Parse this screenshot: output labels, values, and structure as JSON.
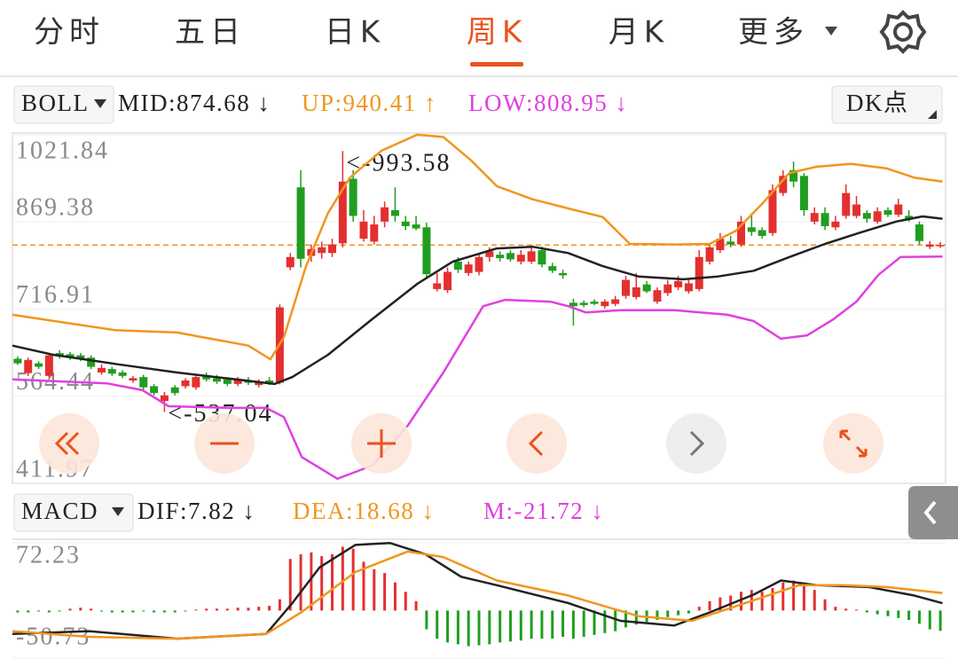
{
  "tabs": {
    "items": [
      "分时",
      "五日",
      "日K",
      "周K",
      "月K",
      "更多"
    ],
    "active": 3
  },
  "boll_bar": {
    "name": "BOLL",
    "items": [
      {
        "text": "MID:874.68 ↓",
        "color": "#222222"
      },
      {
        "text": "UP:940.41 ↑",
        "color": "#f0961e"
      },
      {
        "text": "LOW:808.95 ↓",
        "color": "#e040e0"
      }
    ],
    "option": "DK点"
  },
  "macd_bar": {
    "name": "MACD",
    "items": [
      {
        "text": "DIF:7.82 ↓",
        "color": "#222222"
      },
      {
        "text": "DEA:18.68 ↓",
        "color": "#f0961e"
      },
      {
        "text": "M:-21.72 ↓",
        "color": "#e040e0"
      }
    ]
  },
  "chart_data": [
    {
      "type": "candlestick",
      "up_color": "#e3302f",
      "down_color": "#1f9e1f",
      "xlim": [
        -0.5,
        88.5
      ],
      "ylim": [
        411.97,
        1021.84
      ],
      "yticks": [
        411.97,
        564.44,
        716.91,
        869.38,
        1021.84
      ],
      "price_line": 829,
      "price_line_color": "#f0961e",
      "annotations": [
        "<-993.58",
        "<-537.04"
      ],
      "open": [
        630,
        605,
        622,
        600,
        640,
        638,
        636,
        632,
        606,
        612,
        606,
        592,
        598,
        582,
        556,
        580,
        582,
        580,
        600,
        596,
        594,
        586,
        592,
        584,
        592,
        588,
        790,
        930,
        810,
        815,
        815,
        832,
        945,
        840,
        835,
        870,
        890,
        870,
        865,
        860,
        752,
        750,
        800,
        780,
        782,
        808,
        812,
        815,
        800,
        800,
        820,
        792,
        780,
        728,
        728,
        730,
        722,
        726,
        740,
        738,
        760,
        730,
        745,
        755,
        748,
        752,
        800,
        820,
        835,
        830,
        860,
        855,
        850,
        920,
        960,
        950,
        870,
        885,
        860,
        880,
        880,
        885,
        870,
        890,
        882,
        880,
        865,
        826,
        828
      ],
      "high": [
        634,
        632,
        626,
        640,
        645,
        642,
        640,
        636,
        620,
        616,
        610,
        600,
        602,
        586,
        572,
        584,
        596,
        602,
        606,
        602,
        598,
        598,
        598,
        594,
        598,
        725,
        815,
        960,
        830,
        835,
        840,
        993.58,
        960,
        890,
        880,
        905,
        930,
        880,
        880,
        868,
        780,
        790,
        808,
        800,
        815,
        825,
        818,
        820,
        820,
        825,
        826,
        798,
        786,
        735,
        732,
        734,
        734,
        740,
        775,
        780,
        766,
        755,
        768,
        775,
        770,
        820,
        830,
        850,
        845,
        880,
        885,
        860,
        935,
        960,
        975,
        955,
        895,
        895,
        880,
        935,
        915,
        890,
        895,
        895,
        910,
        890,
        870,
        836,
        834
      ],
      "low": [
        619,
        600,
        612,
        596,
        630,
        628,
        626,
        612,
        602,
        600,
        596,
        588,
        576,
        566,
        537.04,
        566,
        578,
        576,
        590,
        586,
        582,
        582,
        584,
        580,
        584,
        585,
        785,
        790,
        800,
        805,
        808,
        825,
        870,
        835,
        830,
        860,
        870,
        855,
        855,
        770,
        748,
        745,
        780,
        775,
        776,
        800,
        800,
        800,
        795,
        796,
        790,
        780,
        770,
        688,
        720,
        724,
        718,
        722,
        735,
        734,
        745,
        726,
        740,
        750,
        744,
        748,
        795,
        815,
        825,
        826,
        845,
        840,
        845,
        915,
        930,
        880,
        865,
        855,
        855,
        875,
        876,
        868,
        866,
        878,
        878,
        870,
        830,
        822,
        824
      ],
      "close": [
        622,
        628,
        616,
        636,
        634,
        632,
        630,
        616,
        614,
        604,
        600,
        596,
        580,
        570,
        566,
        570,
        592,
        598,
        594,
        590,
        586,
        594,
        588,
        590,
        588,
        720,
        808,
        805,
        822,
        825,
        830,
        940,
        880,
        870,
        865,
        895,
        880,
        862,
        858,
        778,
        762,
        782,
        786,
        795,
        808,
        818,
        806,
        804,
        812,
        818,
        795,
        784,
        776,
        722,
        724,
        726,
        730,
        734,
        768,
        755,
        748,
        750,
        760,
        766,
        762,
        808,
        825,
        840,
        830,
        870,
        852,
        845,
        925,
        950,
        940,
        890,
        885,
        862,
        870,
        920,
        900,
        875,
        888,
        882,
        900,
        874,
        836,
        830,
        829
      ],
      "lines": [
        {
          "color": "#f0961e",
          "x": [
            -0.5,
            9.3,
            15.2,
            22,
            24.1,
            25.4,
            27.5,
            29.6,
            31.7,
            34.7,
            38.1,
            40.6,
            43.2,
            45.7,
            49.1,
            52.5,
            55.8,
            58.4,
            62.6,
            66,
            68.5,
            71,
            73.6,
            76.2,
            79.5,
            82.9,
            85.5,
            88.2
          ],
          "values": [
            707,
            680,
            676,
            653,
            629,
            668,
            792,
            885,
            947,
            994,
            1022,
            1018,
            978,
            932,
            909,
            893,
            878,
            831,
            830,
            831,
            854,
            901,
            955,
            966,
            971,
            963,
            947,
            940
          ]
        },
        {
          "color": "#222222",
          "x": [
            -0.5,
            3.4,
            9.3,
            15.2,
            21.2,
            24.5,
            26.2,
            29.6,
            33.8,
            38.1,
            41.5,
            45.7,
            49.1,
            52.5,
            55.8,
            59.2,
            63.5,
            66.8,
            70.2,
            73.6,
            77,
            80.4,
            83.8,
            86.3,
            88.2
          ],
          "values": [
            653,
            637,
            621,
            606,
            593,
            586,
            598,
            637,
            699,
            761,
            800,
            823,
            826,
            815,
            792,
            774,
            769,
            774,
            784,
            808,
            831,
            851,
            870,
            879,
            875
          ]
        },
        {
          "color": "#e040e0",
          "x": [
            -0.5,
            8.5,
            11.9,
            14.4,
            20.3,
            23.7,
            25.4,
            27.1,
            30.5,
            33.8,
            37.2,
            40.6,
            44.4,
            46.5,
            50.8,
            52.5,
            54.2,
            57.5,
            62.6,
            67.7,
            70.2,
            72.8,
            75.3,
            77.8,
            80,
            82.1,
            84.2,
            88.2
          ],
          "values": [
            594,
            587,
            575,
            547,
            544,
            544,
            528,
            458,
            420,
            443,
            513,
            606,
            722,
            733,
            730,
            722,
            711,
            715,
            715,
            707,
            696,
            665,
            671,
            699,
            730,
            777,
            808,
            809
          ]
        }
      ]
    },
    {
      "type": "macd",
      "up_color": "#e3302f",
      "down_color": "#1f9e1f",
      "xlim": [
        -0.5,
        88.5
      ],
      "ylim": [
        -50.73,
        72.23
      ],
      "yticks": [
        -50.73,
        72.23
      ],
      "histogram": [
        -2,
        -2,
        -1,
        -2,
        -1,
        2,
        3,
        2,
        -1,
        -2,
        -2,
        -2,
        -1,
        -2,
        -2,
        -2,
        -1,
        1,
        2,
        2,
        2,
        3,
        3,
        4,
        5,
        12,
        55,
        60,
        62,
        58,
        60,
        68,
        66,
        52,
        44,
        40,
        30,
        20,
        10,
        -20,
        -30,
        -34,
        -36,
        -38,
        -37,
        -36,
        -34,
        -33,
        -32,
        -30,
        -30,
        -30,
        -28,
        -30,
        -28,
        -26,
        -24,
        -22,
        -18,
        -15,
        -12,
        -10,
        -7,
        -5,
        -3,
        4,
        10,
        14,
        16,
        20,
        22,
        20,
        24,
        30,
        32,
        30,
        22,
        12,
        4,
        2,
        1,
        -2,
        -4,
        -6,
        -8,
        -10,
        -14,
        -20,
        -21.72
      ],
      "lines": [
        {
          "color": "#222222",
          "x": [
            -0.5,
            6.8,
            15.2,
            23.7,
            26.2,
            28.8,
            32.2,
            35.5,
            38.9,
            42.3,
            45.7,
            52.5,
            57.5,
            62.6,
            66,
            70.2,
            72.8,
            76.2,
            81.2,
            85.5,
            88.2
          ],
          "values": [
            -25,
            -22,
            -30,
            -25,
            8,
            46,
            70,
            72,
            60,
            36,
            27,
            8,
            -11,
            -16,
            -2,
            17,
            32,
            27,
            25,
            16,
            7.82
          ]
        },
        {
          "color": "#f0961e",
          "x": [
            -0.5,
            6.8,
            15.2,
            23.7,
            27.1,
            32.2,
            37.2,
            40.6,
            45.7,
            52.5,
            59.2,
            64.3,
            69.4,
            74.5,
            78.7,
            82.9,
            86.3,
            88.2
          ],
          "values": [
            -22,
            -28,
            -30,
            -25,
            -1.5,
            41,
            63,
            57,
            32,
            16,
            -6,
            -11,
            8,
            27,
            27,
            25,
            21,
            18.68
          ]
        }
      ]
    }
  ]
}
